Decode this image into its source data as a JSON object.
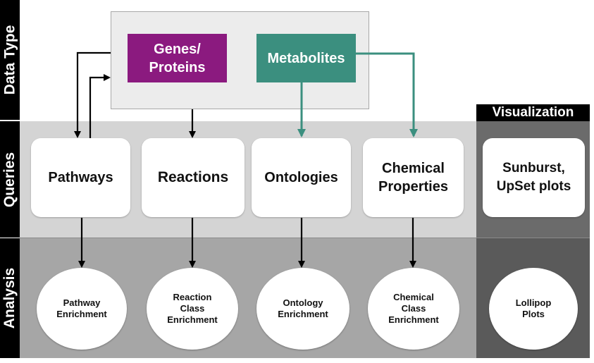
{
  "side_labels": {
    "data_type": "Data Type",
    "queries": "Queries",
    "analysis": "Analysis"
  },
  "visualization_header": "Visualization",
  "data_types": {
    "genes": "Genes/\nProteins",
    "metabolites": "Metabolites"
  },
  "queries": [
    {
      "label": "Pathways"
    },
    {
      "label": "Reactions"
    },
    {
      "label": "Ontologies"
    },
    {
      "label": "Chemical\nProperties"
    }
  ],
  "visualization_query": "Sunburst,\nUpSet plots",
  "analysis": [
    {
      "label": "Pathway\nEnrichment"
    },
    {
      "label": "Reaction\nClass\nEnrichment"
    },
    {
      "label": "Ontology\nEnrichment"
    },
    {
      "label": "Chemical\nClass\nEnrichment"
    }
  ],
  "visualization_analysis": "Lollipop\nPlots",
  "colors": {
    "genes": "#8b1a7f",
    "metabolites": "#3b8f7f",
    "teal_arrow": "#3b8f7f",
    "queries_band": "#d4d4d4",
    "analysis_band": "#a6a6a6",
    "viz_upper": "#6b6b6b",
    "viz_lower": "#5a5a5a"
  }
}
